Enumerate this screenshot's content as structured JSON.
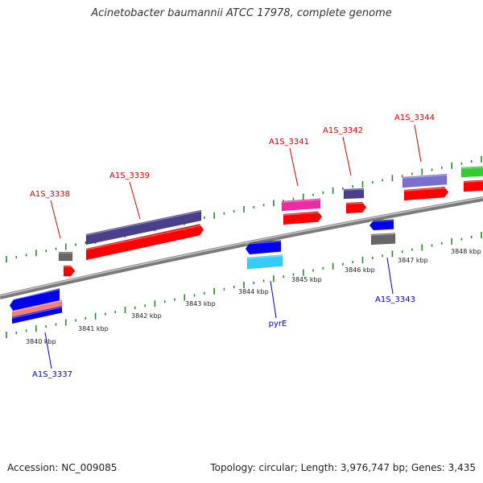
{
  "header": {
    "title": "Acinetobacter baumannii ATCC 17978, complete genome"
  },
  "footer": {
    "accession": "Accession: NC_009085",
    "summary": "Topology: circular; Length: 3,976,747 bp; Genes: 3,435"
  },
  "scale": {
    "labels": [
      "3840 kbp",
      "3841 kbp",
      "3842 kbp",
      "3843 kbp",
      "3844 kbp",
      "3845 kbp",
      "3846 kbp",
      "3847 kbp",
      "3848 kbp"
    ],
    "kbp": [
      3840,
      3841,
      3842,
      3843,
      3844,
      3845,
      3846,
      3847,
      3848
    ]
  },
  "colors": {
    "forward_label": "#d40000",
    "reverse_label": "#0000cc",
    "axis": "#888888",
    "tick": "#2a8a2a"
  },
  "genes_top": [
    {
      "name": "A1S_3338"
    },
    {
      "name": "A1S_3339"
    },
    {
      "name": "A1S_3341"
    },
    {
      "name": "A1S_3342"
    },
    {
      "name": "A1S_3344"
    }
  ],
  "genes_bottom": [
    {
      "name": "A1S_3337"
    },
    {
      "name": "pyrE"
    },
    {
      "name": "A1S_3343"
    }
  ]
}
